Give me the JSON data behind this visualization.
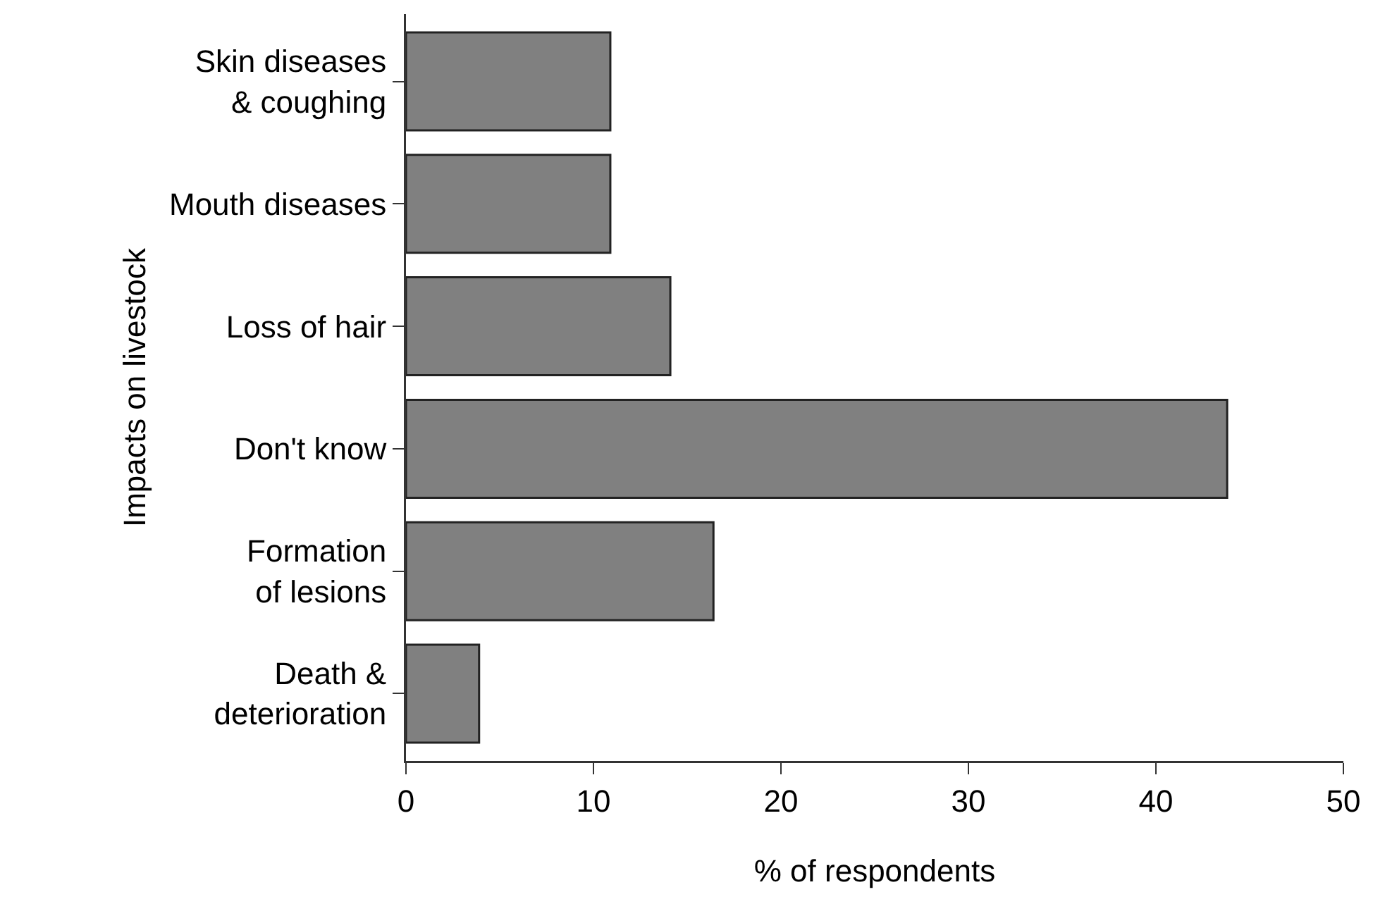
{
  "chart_data": {
    "type": "bar",
    "orientation": "horizontal",
    "categories": [
      "Skin diseases\n& coughing",
      "Mouth diseases",
      "Loss of hair",
      "Don't know",
      "Formation\nof lesions",
      "Death &\ndeterioration"
    ],
    "values": [
      10.9,
      10.9,
      14.1,
      43.8,
      16.4,
      3.9
    ],
    "color": "#808080",
    "xlabel": "% of respondents",
    "ylabel": "Impacts on livestock",
    "xlim": [
      0,
      50
    ],
    "xticks": [
      0,
      10,
      20,
      30,
      40,
      50
    ],
    "grid": false,
    "legend": false
  }
}
